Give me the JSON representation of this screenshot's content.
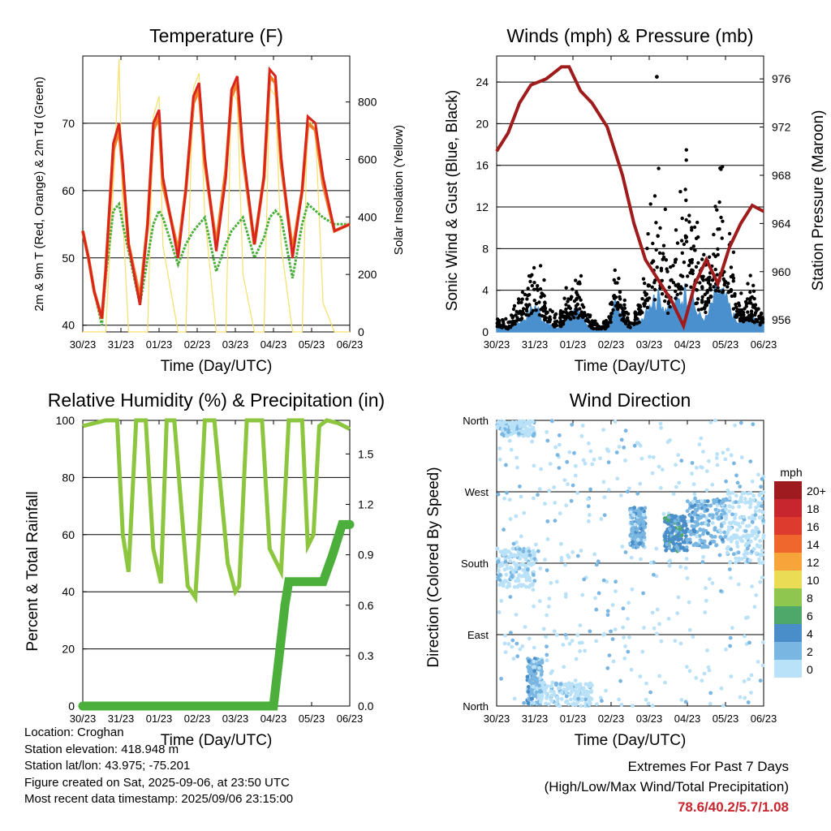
{
  "x_tick_labels": [
    "30/23",
    "31/23",
    "01/23",
    "02/23",
    "03/23",
    "04/23",
    "05/23",
    "06/23"
  ],
  "xlabel": "Time (Day/UTC)",
  "panels": {
    "temperature": {
      "title": "Temperature (F)",
      "ylabel": "2m & 9m T (Red, Orange) & 2m Td (Green)",
      "y2label": "Solar Insolation (Yellow)",
      "yticks": [
        "40",
        "50",
        "60",
        "70"
      ],
      "y2ticks": [
        "0",
        "200",
        "400",
        "600",
        "800"
      ]
    },
    "winds": {
      "title": "Winds (mph) & Pressure (mb)",
      "ylabel": "Sonic Wind & Gust (Blue, Black)",
      "y2label": "Station Pressure (Maroon)",
      "yticks": [
        "0",
        "4",
        "8",
        "12",
        "16",
        "20",
        "24"
      ],
      "y2ticks": [
        "956",
        "960",
        "964",
        "968",
        "972",
        "976"
      ]
    },
    "humidity": {
      "title": "Relative Humidity (%) & Precipitation (in)",
      "ylabel": "Percent & Total Rainfall",
      "yticks": [
        "0",
        "20",
        "40",
        "60",
        "80",
        "100"
      ],
      "y2ticks": [
        "0.0",
        "0.3",
        "0.6",
        "0.9",
        "1.2",
        "1.5"
      ]
    },
    "direction": {
      "title": "Wind Direction",
      "ylabel": "Direction (Colored By Speed)",
      "yticks": [
        "North",
        "East",
        "South",
        "West",
        "North"
      ],
      "legend_title": "mph",
      "legend_labels": [
        "20+",
        "18",
        "16",
        "14",
        "12",
        "10",
        "8",
        "6",
        "4",
        "2",
        "0"
      ],
      "legend_colors": [
        "#9e1b1f",
        "#c8262e",
        "#dc3b2e",
        "#f0672e",
        "#f7a53b",
        "#eadd55",
        "#8fc64f",
        "#4ea86a",
        "#4a8ec9",
        "#7ab6e2",
        "#b9e1f7"
      ]
    }
  },
  "colors": {
    "temp_2m": "#d8261c",
    "temp_9m": "#f07f2a",
    "dewpoint": "#4caf3c",
    "solar": "#f6e06a",
    "wind": "#4a90cf",
    "gust": "#000000",
    "pressure": "#a01c1c",
    "rh": "#8cc63f",
    "precip": "#4caf3c",
    "extremes": "#c8262e"
  },
  "chart_data": [
    {
      "type": "line",
      "title": "Temperature (F)",
      "xlabel": "Time (Day/UTC)",
      "ylabel": "2m & 9m T (Red, Orange) & 2m Td (Green)",
      "y2label": "Solar Insolation (Yellow)",
      "x_units": "days since 30/23",
      "x": [
        0,
        0.15,
        0.3,
        0.5,
        0.6,
        0.8,
        0.95,
        1.05,
        1.2,
        1.5,
        1.7,
        1.85,
        2.0,
        2.1,
        2.5,
        2.7,
        2.9,
        3.05,
        3.2,
        3.5,
        3.75,
        3.9,
        4.05,
        4.2,
        4.5,
        4.75,
        4.9,
        5.05,
        5.2,
        5.5,
        5.75,
        5.9,
        6.1,
        6.3,
        6.6,
        7.0
      ],
      "series": [
        {
          "name": "2m T",
          "axis": "left",
          "values": [
            54,
            50,
            45,
            41,
            48,
            67,
            70,
            64,
            52,
            43,
            55,
            70,
            72,
            62,
            50,
            60,
            74,
            76,
            65,
            51,
            62,
            75,
            77,
            66,
            52,
            62,
            78,
            77,
            65,
            50,
            60,
            71,
            70,
            62,
            54,
            55
          ]
        },
        {
          "name": "9m T",
          "axis": "left",
          "values": [
            54,
            50,
            45,
            41,
            48,
            66,
            69,
            63,
            52,
            44,
            55,
            69,
            71,
            61,
            51,
            60,
            73,
            75,
            64,
            52,
            63,
            74,
            76,
            65,
            52,
            62,
            77,
            76,
            64,
            51,
            60,
            70,
            69,
            61,
            54,
            55
          ]
        },
        {
          "name": "2m Td",
          "axis": "left",
          "values": [
            54,
            50,
            45,
            40,
            47,
            57,
            58,
            55,
            51,
            43,
            50,
            55,
            57,
            56,
            49,
            52,
            54,
            55,
            56,
            48,
            52,
            54,
            55,
            56,
            50,
            53,
            56,
            57,
            56,
            47,
            55,
            58,
            57,
            56,
            55,
            55
          ]
        },
        {
          "name": "Solar Insolation",
          "axis": "right",
          "values": [
            0,
            0,
            0,
            0,
            0,
            500,
            950,
            400,
            0,
            0,
            0,
            750,
            820,
            300,
            0,
            0,
            850,
            900,
            400,
            0,
            0,
            850,
            800,
            200,
            0,
            0,
            850,
            820,
            300,
            0,
            0,
            750,
            700,
            100,
            0,
            0
          ]
        }
      ],
      "ylim": [
        39,
        80
      ],
      "y2lim": [
        0,
        960
      ],
      "grid": true
    },
    {
      "type": "line",
      "title": "Winds (mph) & Pressure (mb)",
      "xlabel": "Time (Day/UTC)",
      "ylabel": "Sonic Wind & Gust (Blue, Black)",
      "y2label": "Station Pressure (Maroon)",
      "x_units": "days since 30/23",
      "x_pressure": [
        0,
        0.3,
        0.6,
        0.9,
        1.3,
        1.7,
        1.9,
        2.2,
        2.5,
        2.9,
        3.3,
        3.6,
        3.9,
        4.2,
        4.6,
        4.9,
        5.2,
        5.5,
        5.8,
        6.1,
        6.4,
        6.7,
        7.0
      ],
      "pressure_mb": [
        970,
        971.5,
        974,
        975.5,
        976,
        977,
        977,
        975,
        974,
        972,
        968,
        964,
        961,
        959.5,
        957.5,
        955.5,
        959,
        961,
        959,
        962,
        964,
        965.5,
        965
      ],
      "x_wind": [
        0,
        0.3,
        0.8,
        1.0,
        1.3,
        1.6,
        1.8,
        2.1,
        2.5,
        2.9,
        3.1,
        3.5,
        3.8,
        4.0,
        4.3,
        4.5,
        4.8,
        5.0,
        5.3,
        5.5,
        5.8,
        6.0,
        6.3,
        6.6,
        7.0
      ],
      "gust_mph": [
        1.5,
        1,
        5,
        7,
        3,
        1,
        3,
        5,
        1,
        1,
        6,
        1,
        4,
        9,
        12,
        6,
        11,
        15,
        8,
        6,
        14,
        12,
        3,
        4,
        2
      ],
      "wind_mph": [
        0.5,
        0.3,
        1.5,
        2.5,
        0.8,
        0.3,
        1.2,
        1.8,
        0.3,
        0.5,
        2.5,
        0.4,
        1.2,
        3,
        3,
        2,
        3,
        4,
        1.5,
        1.2,
        4,
        3,
        0.8,
        1.2,
        0.8
      ],
      "max_gust_mph": 24.5,
      "ylim": [
        0,
        26.5
      ],
      "y2lim": [
        955,
        977.9
      ],
      "grid": true
    },
    {
      "type": "line",
      "title": "Relative Humidity (%) & Precipitation (in)",
      "xlabel": "Time (Day/UTC)",
      "ylabel": "Percent & Total Rainfall",
      "x_units": "days since 30/23",
      "x": [
        0,
        0.6,
        0.9,
        1.05,
        1.2,
        1.4,
        1.65,
        1.85,
        2.05,
        2.2,
        2.4,
        2.75,
        2.95,
        3.05,
        3.2,
        3.45,
        3.8,
        4.0,
        4.1,
        4.3,
        4.7,
        4.9,
        5.2,
        5.4,
        5.75,
        5.9,
        6.05,
        6.2,
        6.4,
        6.7,
        7.0
      ],
      "rh_percent": [
        98,
        100,
        100,
        60,
        47,
        100,
        100,
        55,
        43,
        100,
        100,
        42,
        38,
        60,
        100,
        100,
        50,
        40,
        42,
        100,
        100,
        55,
        47,
        100,
        100,
        56,
        60,
        98,
        100,
        99,
        97
      ],
      "precip_x": [
        0,
        3.5,
        5.0,
        5.15,
        5.3,
        5.4,
        6.3,
        6.55,
        6.8,
        7.0
      ],
      "precip_in": [
        0,
        0,
        0,
        0.3,
        0.6,
        0.74,
        0.74,
        0.9,
        1.08,
        1.08
      ],
      "ylim": [
        0,
        100
      ],
      "y2lim": [
        0,
        1.7
      ],
      "grid": true
    },
    {
      "type": "scatter",
      "title": "Wind Direction",
      "xlabel": "Time (Day/UTC)",
      "ylabel": "Direction (Colored By Speed)",
      "y_categories": [
        "North",
        "East",
        "South",
        "West",
        "North"
      ],
      "colorbar_label": "mph",
      "clusters": [
        {
          "x_range": [
            0,
            1.0
          ],
          "dir_range": [
            340,
            360
          ],
          "speed_mph": 0
        },
        {
          "x_range": [
            0,
            1.0
          ],
          "dir_range": [
            150,
            200
          ],
          "speed_mph": 0
        },
        {
          "x_range": [
            0.8,
            1.2
          ],
          "dir_range": [
            0,
            60
          ],
          "speed_mph": 2
        },
        {
          "x_range": [
            1.1,
            2.5
          ],
          "dir_range": [
            0,
            30
          ],
          "speed_mph": 0
        },
        {
          "x_range": [
            3.5,
            3.9
          ],
          "dir_range": [
            200,
            250
          ],
          "speed_mph": 2
        },
        {
          "x_range": [
            4.4,
            5.0
          ],
          "dir_range": [
            195,
            240
          ],
          "speed_mph": 4
        },
        {
          "x_range": [
            5.0,
            6.0
          ],
          "dir_range": [
            200,
            260
          ],
          "speed_mph": 2
        },
        {
          "x_range": [
            6.0,
            7.0
          ],
          "dir_range": [
            180,
            270
          ],
          "speed_mph": 0
        }
      ],
      "grid": true
    }
  ],
  "station_info": {
    "location": "Location: Croghan",
    "elevation": "Station elevation: 418.948 m",
    "latlon": "Station lat/lon: 43.975; -75.201",
    "created": "Figure created on Sat, 2025-09-06, at 23:50 UTC",
    "recent": "Most recent data timestamp: 2025/09/06 23:15:00"
  },
  "extremes": {
    "title": "Extremes For Past 7 Days",
    "subtitle": "(High/Low/Max Wind/Total Precipitation)",
    "values": "78.6/40.2/5.7/1.08"
  }
}
